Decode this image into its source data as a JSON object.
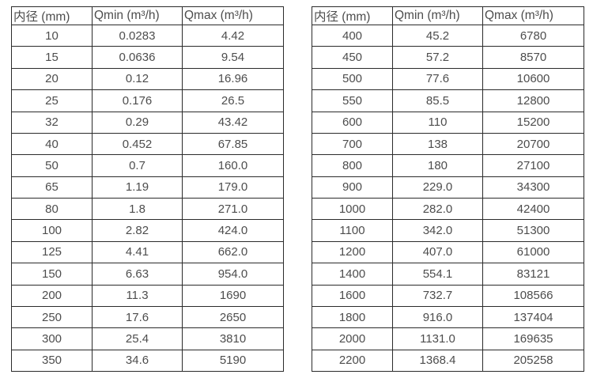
{
  "colors": {
    "background": "#ffffff",
    "text": "#4d4d4d",
    "border": "#2b2b2b"
  },
  "chart_data": [
    {
      "type": "table",
      "title": "",
      "headers": [
        "内径 (mm)",
        "Qmin (m³/h)",
        "Qmax (m³/h)"
      ],
      "rows": [
        [
          "10",
          "0.0283",
          "4.42"
        ],
        [
          "15",
          "0.0636",
          "9.54"
        ],
        [
          "20",
          "0.12",
          "16.96"
        ],
        [
          "25",
          "0.176",
          "26.5"
        ],
        [
          "32",
          "0.29",
          "43.42"
        ],
        [
          "40",
          "0.452",
          "67.85"
        ],
        [
          "50",
          "0.7",
          "160.0"
        ],
        [
          "65",
          "1.19",
          "179.0"
        ],
        [
          "80",
          "1.8",
          "271.0"
        ],
        [
          "100",
          "2.82",
          "424.0"
        ],
        [
          "125",
          "4.41",
          "662.0"
        ],
        [
          "150",
          "6.63",
          "954.0"
        ],
        [
          "200",
          "11.3",
          "1690"
        ],
        [
          "250",
          "17.6",
          "2650"
        ],
        [
          "300",
          "25.4",
          "3810"
        ],
        [
          "350",
          "34.6",
          "5190"
        ]
      ]
    },
    {
      "type": "table",
      "title": "",
      "headers": [
        "内径 (mm)",
        "Qmin (m³/h)",
        "Qmax (m³/h)"
      ],
      "rows": [
        [
          "400",
          "45.2",
          "6780"
        ],
        [
          "450",
          "57.2",
          "8570"
        ],
        [
          "500",
          "77.6",
          "10600"
        ],
        [
          "550",
          "85.5",
          "12800"
        ],
        [
          "600",
          "110",
          "15200"
        ],
        [
          "700",
          "138",
          "20700"
        ],
        [
          "800",
          "180",
          "27100"
        ],
        [
          "900",
          "229.0",
          "34300"
        ],
        [
          "1000",
          "282.0",
          "42400"
        ],
        [
          "1100",
          "342.0",
          "51300"
        ],
        [
          "1200",
          "407.0",
          "61000"
        ],
        [
          "1400",
          "554.1",
          "83121"
        ],
        [
          "1600",
          "732.7",
          "108566"
        ],
        [
          "1800",
          "916.0",
          "137404"
        ],
        [
          "2000",
          "1131.0",
          "169635"
        ],
        [
          "2200",
          "1368.4",
          "205258"
        ]
      ]
    }
  ]
}
